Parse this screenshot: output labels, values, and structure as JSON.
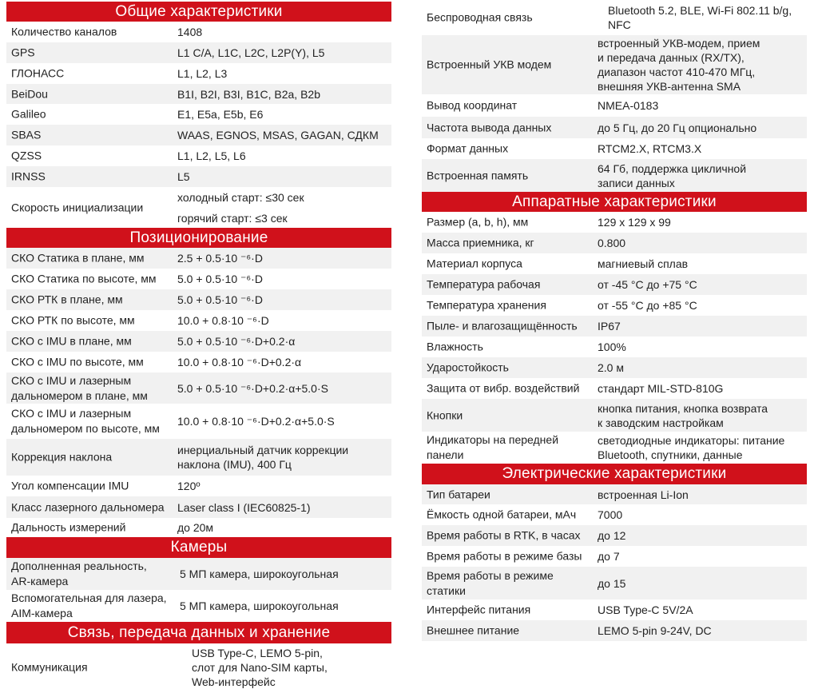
{
  "left_column": [
    {
      "title": "Общие  характеристики",
      "rows": [
        {
          "label": "Количество каналов",
          "value": "1408"
        },
        {
          "label": "GPS",
          "value": "L1 C/A, L1C, L2C, L2P(Y), L5"
        },
        {
          "label": "ГЛОНАСС",
          "value": "L1, L2, L3"
        },
        {
          "label": "BeiDou",
          "value": "B1I, B2I, B3I, B1C, B2a, B2b"
        },
        {
          "label": "Galileo",
          "value": "E1, E5a, E5b, E6"
        },
        {
          "label": "SBAS",
          "value": "WAAS, EGNOS, MSAS, GAGAN, СДКМ"
        },
        {
          "label": "QZSS",
          "value": "L1, L2, L5, L6"
        },
        {
          "label": "IRNSS",
          "value": "L5"
        },
        {
          "label": "Скорость инициализации",
          "value": "холодный старт: ≤30 сек\nгорячий старт: ≤3 сек"
        }
      ]
    },
    {
      "title": "Позиционирование",
      "rows": [
        {
          "label": "СКО Статика в плане, мм",
          "value": "2.5 + 0.5·10 ⁻⁶·D"
        },
        {
          "label": "СКО Статика по высоте, мм",
          "value": "5.0 + 0.5·10 ⁻⁶·D"
        },
        {
          "label": "СКО РТК в плане, мм",
          "value": "5.0 + 0.5·10 ⁻⁶·D"
        },
        {
          "label": "СКО РТК по высоте, мм",
          "value": "10.0 + 0.8·10 ⁻⁶·D"
        },
        {
          "label": "СКО с IMU в плане, мм",
          "value": "5.0 + 0.5·10 ⁻⁶·D+0.2·α"
        },
        {
          "label": "СКО с IMU  по высоте, мм",
          "value": "10.0 + 0.8·10 ⁻⁶·D+0.2·α"
        },
        {
          "label": "СКО с IMU  и лазерным\nдальномером в плане, мм",
          "value": "5.0 + 0.5·10 ⁻⁶·D+0.2·α+5.0·S"
        },
        {
          "label": "СКО с IMU  и лазерным\nдальномером по высоте, мм",
          "value": "10.0 + 0.8·10 ⁻⁶·D+0.2·α+5.0·S"
        },
        {
          "label": "Коррекция наклона",
          "value": "инерциальный датчик коррекции\nнаклона (IMU), 400 Гц"
        },
        {
          "label": "Угол компенсации IMU",
          "value": "120º"
        },
        {
          "label": "Класс лазерного дальномера",
          "value": "Laser class I (IEC60825-1)"
        },
        {
          "label": "Дальность измерений",
          "value": "до 20м"
        }
      ]
    },
    {
      "title": "Камеры",
      "rows": [
        {
          "label": "Дополненная реальность,\nAR-камера",
          "value": "5 МП камера, широкоугольная"
        },
        {
          "label": "Вспомогательная для лазера,\nAIM-камера",
          "value": "5 МП камера, широкоугольная"
        }
      ]
    },
    {
      "title": "Связь, передача данных и хранение",
      "rows": [
        {
          "label": "Коммуникация",
          "value": "USB Type-C, LEMO 5-pin,\nслот для Nano-SIM карты,\nWeb-интерфейс"
        }
      ]
    }
  ],
  "right_column": [
    {
      "title": "",
      "rows": [
        {
          "label": "Беспроводная связь",
          "value": "Bluetooth 5.2, BLE, Wi-Fi 802.11 b/g,\nNFC"
        },
        {
          "label": "Встроенный УКВ модем",
          "value": "встроенный УКВ-модем, прием\nи передача данных (RX/TX),\nдиапазон частот 410-470 МГц,\nвнешняя УКВ-антенна SMA"
        },
        {
          "label": "Вывод координат",
          "value": "NMEA-0183"
        },
        {
          "label": "Частота вывода данных",
          "value": "до 5 Гц, до 20 Гц опционально"
        },
        {
          "label": "Формат данных",
          "value": "RTCM2.X, RTCM3.X"
        },
        {
          "label": "Встроенная память",
          "value": "64 Гб, поддержка цикличной\nзаписи данных"
        }
      ]
    },
    {
      "title": "Аппаратные характеристики",
      "rows": [
        {
          "label": "Размер (a, b, h), мм",
          "value": "129 x 129 x 99"
        },
        {
          "label": "Масса приемника, кг",
          "value": "0.800"
        },
        {
          "label": "Материал корпуса",
          "value": "магниевый сплав"
        },
        {
          "label": "Температура рабочая",
          "value": "от -45 °C до +75 °C"
        },
        {
          "label": "Температура хранения",
          "value": "от -55 °C до +85 °C"
        },
        {
          "label": "Пыле- и влагозащищённость",
          "value": "IP67"
        },
        {
          "label": "Влажность",
          "value": "100%"
        },
        {
          "label": "Ударостойкость",
          "value": "2.0 м"
        },
        {
          "label": "Защита от вибр. воздействий",
          "value": "стандарт MIL-STD-810G"
        },
        {
          "label": "Кнопки",
          "value": "кнопка питания, кнопка возврата\nк заводским настройкам"
        },
        {
          "label": "Индикаторы на передней\nпанели",
          "value": "светодиодные индикаторы: питание\nBluetooth, спутники, данные"
        }
      ]
    },
    {
      "title": "Электрические характеристики",
      "rows": [
        {
          "label": "Тип батареи",
          "value": "встроенная Li-Ion"
        },
        {
          "label": "Ёмкость одной батареи, мАч",
          "value": "7000"
        },
        {
          "label": "Время работы в RTK, в часах",
          "value": "до 12"
        },
        {
          "label": "Время работы в режиме базы",
          "value": "до 7"
        },
        {
          "label": "Время работы в режиме\nстатики",
          "value": "до 15"
        },
        {
          "label": "Интерфейс питания",
          "value": "USB Type-C 5V/2A"
        },
        {
          "label": "Внешнее питание",
          "value": "LEMO 5-pin 9-24V, DC"
        }
      ]
    }
  ]
}
